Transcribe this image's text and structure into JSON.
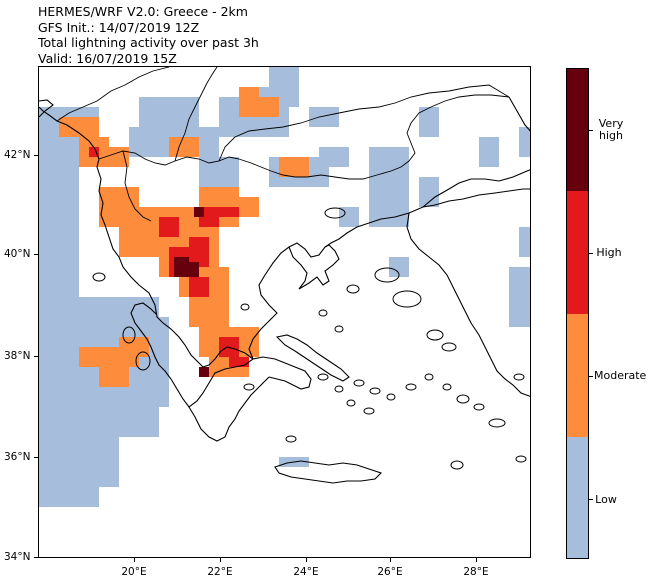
{
  "header": {
    "line1": "HERMES/WRF V2.0: Greece - 2km",
    "line2": "GFS Init.: 14/07/2019 12Z",
    "line3": "Total lightning activity over past 3h",
    "line4": "Valid: 16/07/2019 15Z"
  },
  "map": {
    "lon_range": [
      18.0,
      30.0
    ],
    "lat_range": [
      34.0,
      44.0
    ],
    "y_ticks": [
      {
        "lat": 42,
        "label": "42°N"
      },
      {
        "lat": 40,
        "label": "40°N"
      },
      {
        "lat": 38,
        "label": "38°N"
      },
      {
        "lat": 36,
        "label": "36°N"
      },
      {
        "lat": 34,
        "label": "34°N"
      }
    ],
    "x_ticks": [
      {
        "lon": 20,
        "label": "20°E"
      },
      {
        "lon": 22,
        "label": "22°E"
      },
      {
        "lon": 24,
        "label": "24°E"
      },
      {
        "lon": 26,
        "label": "26°E"
      },
      {
        "lon": 28,
        "label": "28°E"
      }
    ]
  },
  "legend": {
    "categories": [
      {
        "label": "Very high",
        "color": "#67000d"
      },
      {
        "label": "High",
        "color": "#e31a1c"
      },
      {
        "label": "Moderate",
        "color": "#fd8d3c"
      },
      {
        "label": "Low",
        "color": "#a6bddb"
      }
    ]
  }
}
